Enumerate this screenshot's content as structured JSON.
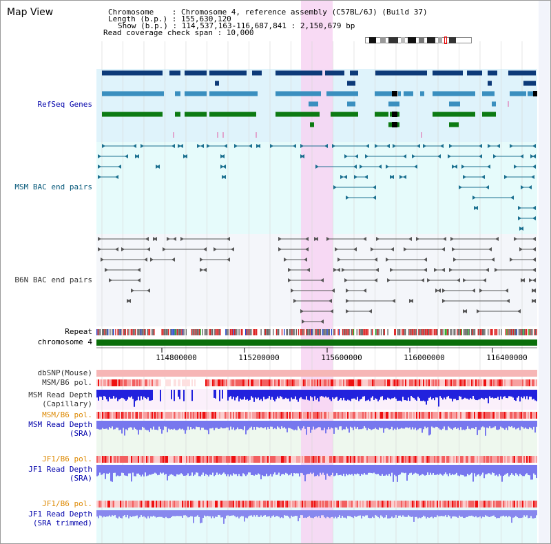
{
  "title": "Map View",
  "header": {
    "chromosome_line": "Chromosome    : Chromosome 4, reference assembly (C57BL/6J) (Build 37)",
    "length_line": "Length (b.p.) : 155,630,120",
    "show_line": "Show (b.p.) : 114,537,163-116,687,841 : 2,150,679 bp",
    "coverage_line": "Read coverage check span : 10,000"
  },
  "tracks": {
    "refseq": "RefSeq Genes",
    "msm_bac": "MSM BAC end pairs",
    "b6n_bac": "B6N BAC end pairs",
    "repeat": "Repeat",
    "chromosome": "chromosome 4",
    "dbsnp": "dbSNP(Mouse)",
    "msm_b6_pol_1": "MSM/B6 pol.",
    "msm_read_depth_cap_1": "MSM Read Depth",
    "msm_read_depth_cap_2": "(Capillary)",
    "msm_b6_pol_2": "MSM/B6 pol.",
    "msm_read_depth_sra_1": "MSM Read Depth",
    "msm_read_depth_sra_2": "(SRA)",
    "jf1_b6_pol_1": "JF1/B6 pol.",
    "jf1_read_depth_sra_1": "JF1 Read Depth",
    "jf1_read_depth_sra_2": "(SRA)",
    "jf1_b6_pol_2": "JF1/B6 pol.",
    "jf1_read_depth_trim_1": "JF1 Read Depth",
    "jf1_read_depth_trim_2": "(SRA trimmed)"
  },
  "axis": {
    "ticks": [
      "114800000",
      "115200000",
      "115600000",
      "116000000",
      "116400000"
    ]
  },
  "colors": {
    "refseq_bg": "#dff3fb",
    "msm_bg": "#e6fbfb",
    "b6n_bg": "#f4f6fa",
    "highlight": "#f7d4f2",
    "gene_dark": "#0d3a78",
    "gene_mid": "#3a8fbf",
    "gene_green": "#0c7a12",
    "bac_teal": "#1a6f8f",
    "bac_gray": "#555555",
    "chrom_green": "#0a6e0a",
    "depth_blue": "#2222dd",
    "depth_light": "#7777ee"
  }
}
